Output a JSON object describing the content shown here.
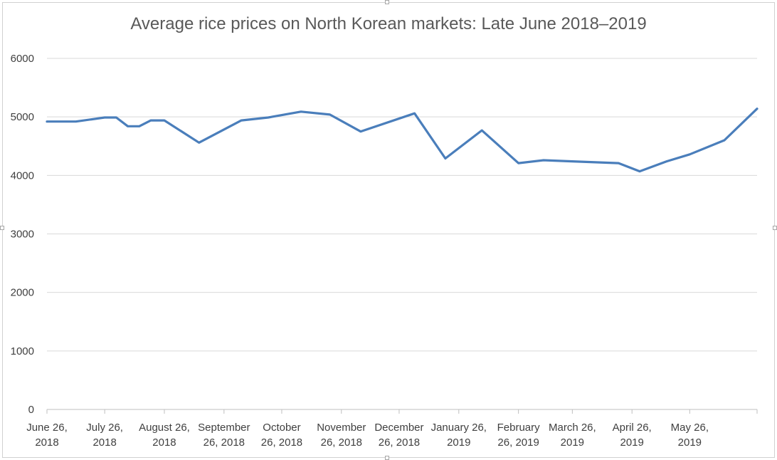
{
  "chart_data": {
    "type": "line",
    "title": "Average rice prices on North Korean markets: Late June 2018–2019",
    "xlabel": "",
    "ylabel": "",
    "ylim": [
      0,
      6000
    ],
    "yticks": [
      0,
      1000,
      2000,
      3000,
      4000,
      5000,
      6000
    ],
    "grid": true,
    "legend": "none",
    "color": "#4a7ebb",
    "x_tick_labels": [
      [
        "June 26,",
        "2018"
      ],
      [
        "July 26,",
        "2018"
      ],
      [
        "August 26,",
        "2018"
      ],
      [
        "September",
        "26, 2018"
      ],
      [
        "October",
        "26, 2018"
      ],
      [
        "November",
        "26, 2018"
      ],
      [
        "December",
        "26, 2018"
      ],
      [
        "January 26,",
        "2019"
      ],
      [
        "February",
        "26, 2019"
      ],
      [
        "March 26,",
        "2019"
      ],
      [
        "April 26,",
        "2019"
      ],
      [
        "May 26,",
        "2019"
      ]
    ],
    "x_start": "2018-06-26",
    "x_end": "2019-06-30",
    "series": [
      {
        "points": [
          [
            "2018-06-26",
            4920
          ],
          [
            "2018-07-06",
            4920
          ],
          [
            "2018-07-11",
            4920
          ],
          [
            "2018-07-26",
            4990
          ],
          [
            "2018-08-01",
            4990
          ],
          [
            "2018-08-07",
            4840
          ],
          [
            "2018-08-13",
            4840
          ],
          [
            "2018-08-19",
            4940
          ],
          [
            "2018-08-26",
            4940
          ],
          [
            "2018-09-13",
            4560
          ],
          [
            "2018-10-05",
            4940
          ],
          [
            "2018-10-19",
            4990
          ],
          [
            "2018-11-05",
            5090
          ],
          [
            "2018-11-20",
            5040
          ],
          [
            "2018-12-06",
            4750
          ],
          [
            "2019-01-03",
            5060
          ],
          [
            "2019-01-19",
            4290
          ],
          [
            "2019-02-07",
            4770
          ],
          [
            "2019-02-26",
            4210
          ],
          [
            "2019-03-11",
            4260
          ],
          [
            "2019-03-26",
            4240
          ],
          [
            "2019-04-19",
            4210
          ],
          [
            "2019-04-30",
            4070
          ],
          [
            "2019-05-14",
            4240
          ],
          [
            "2019-05-26",
            4360
          ],
          [
            "2019-06-13",
            4600
          ],
          [
            "2019-06-30",
            5140
          ]
        ]
      }
    ]
  }
}
